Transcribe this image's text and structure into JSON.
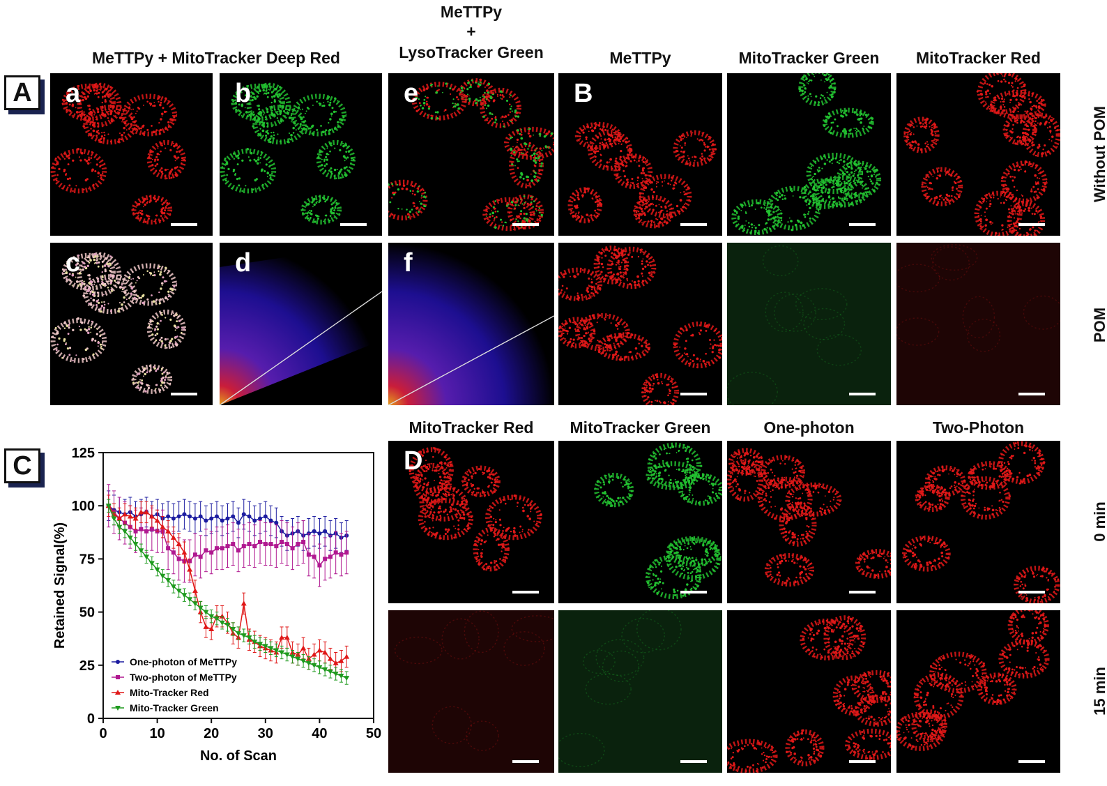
{
  "panelA": {
    "label": "A",
    "group_title": "MeTTPy + MitoTracker Deep Red",
    "lyso_title": [
      "MeTTPy",
      "+",
      "LysoTracker Green"
    ],
    "tiles": [
      {
        "letter": "a",
        "kind": "red"
      },
      {
        "letter": "b",
        "kind": "green"
      },
      {
        "letter": "e",
        "kind": "mix"
      },
      {
        "letter": "c",
        "kind": "merge"
      },
      {
        "letter": "d",
        "kind": "scatter"
      },
      {
        "letter": "f",
        "kind": "scatter"
      }
    ]
  },
  "panelB": {
    "label": "B",
    "columns": [
      "MeTTPy",
      "MitoTracker Green",
      "MitoTracker Red"
    ],
    "rows": [
      "Without POM",
      "POM"
    ]
  },
  "panelC": {
    "label": "C"
  },
  "panelD": {
    "label": "D",
    "columns": [
      "MitoTracker Red",
      "MitoTracker Green",
      "One-photon",
      "Two-Photon"
    ],
    "rows": [
      "0 min",
      "15 min"
    ]
  },
  "colors": {
    "red": "#e01818",
    "green": "#22c030",
    "blue": "#1c1ca0",
    "magenta": "#b01890",
    "chartRed": "#e01818",
    "chartGreen": "#1e9a1e"
  },
  "chart_data": {
    "type": "line",
    "xlabel": "No. of Scan",
    "ylabel": "Retained Signal(%)",
    "xlim": [
      0,
      50
    ],
    "ylim": [
      0,
      125
    ],
    "xticks": [
      0,
      10,
      20,
      30,
      40,
      50
    ],
    "yticks": [
      0,
      25,
      50,
      75,
      100,
      125
    ],
    "legend": "bottom-left",
    "series": [
      {
        "name": "One-photon of MeTTPy",
        "color": "#1c1ca0",
        "marker": "circle",
        "x": [
          1,
          2,
          3,
          4,
          5,
          6,
          7,
          8,
          9,
          10,
          11,
          12,
          13,
          14,
          15,
          16,
          17,
          18,
          19,
          20,
          21,
          22,
          23,
          24,
          25,
          26,
          27,
          28,
          29,
          30,
          31,
          32,
          33,
          34,
          35,
          36,
          37,
          38,
          39,
          40,
          41,
          42,
          43,
          44,
          45
        ],
        "y": [
          100,
          98,
          97,
          96,
          97,
          95,
          96,
          97,
          95,
          96,
          94,
          95,
          94,
          95,
          96,
          95,
          94,
          95,
          93,
          94,
          95,
          93,
          94,
          95,
          92,
          96,
          95,
          93,
          94,
          95,
          93,
          92,
          88,
          86,
          87,
          88,
          86,
          87,
          88,
          87,
          88,
          86,
          87,
          85,
          86
        ],
        "err": 7
      },
      {
        "name": "Two-photon of MeTTPy",
        "color": "#b01890",
        "marker": "square",
        "x": [
          1,
          2,
          3,
          4,
          5,
          6,
          7,
          8,
          9,
          10,
          11,
          12,
          13,
          14,
          15,
          16,
          17,
          18,
          19,
          20,
          21,
          22,
          23,
          24,
          25,
          26,
          27,
          28,
          29,
          30,
          31,
          32,
          33,
          34,
          35,
          36,
          37,
          38,
          39,
          40,
          41,
          42,
          43,
          44,
          45
        ],
        "y": [
          100,
          97,
          94,
          92,
          90,
          88,
          89,
          88,
          89,
          88,
          88,
          80,
          78,
          75,
          74,
          74,
          77,
          76,
          79,
          78,
          80,
          80,
          81,
          82,
          79,
          81,
          82,
          81,
          83,
          82,
          82,
          81,
          83,
          82,
          80,
          82,
          83,
          77,
          76,
          72,
          75,
          76,
          78,
          77,
          78
        ],
        "err": 10
      },
      {
        "name": "Mito-Tracker Red",
        "color": "#e01818",
        "marker": "triangle-up",
        "x": [
          1,
          2,
          3,
          4,
          5,
          6,
          7,
          8,
          9,
          10,
          11,
          12,
          13,
          14,
          15,
          16,
          17,
          18,
          19,
          20,
          21,
          22,
          23,
          24,
          25,
          26,
          27,
          28,
          29,
          30,
          31,
          32,
          33,
          34,
          35,
          36,
          37,
          38,
          39,
          40,
          41,
          42,
          43,
          44,
          45
        ],
        "y": [
          100,
          96,
          94,
          96,
          95,
          94,
          97,
          97,
          95,
          93,
          90,
          88,
          85,
          82,
          78,
          70,
          60,
          50,
          43,
          42,
          48,
          48,
          45,
          40,
          38,
          54,
          37,
          36,
          34,
          33,
          32,
          31,
          38,
          38,
          31,
          30,
          33,
          28,
          30,
          32,
          31,
          28,
          26,
          27,
          29
        ],
        "err": 5
      },
      {
        "name": "Mito-Tracker Green",
        "color": "#1e9a1e",
        "marker": "triangle-down",
        "x": [
          1,
          2,
          3,
          4,
          5,
          6,
          7,
          8,
          9,
          10,
          11,
          12,
          13,
          14,
          15,
          16,
          17,
          18,
          19,
          20,
          21,
          22,
          23,
          24,
          25,
          26,
          27,
          28,
          29,
          30,
          31,
          32,
          33,
          34,
          35,
          36,
          37,
          38,
          39,
          40,
          41,
          42,
          43,
          44,
          45
        ],
        "y": [
          100,
          94,
          90,
          88,
          85,
          82,
          79,
          76,
          73,
          70,
          67,
          65,
          62,
          60,
          58,
          56,
          54,
          52,
          50,
          48,
          47,
          45,
          44,
          42,
          40,
          39,
          38,
          36,
          35,
          34,
          33,
          32,
          31,
          30,
          29,
          28,
          27,
          26,
          25,
          24,
          23,
          22,
          21,
          20,
          19
        ],
        "err": 3
      }
    ]
  }
}
